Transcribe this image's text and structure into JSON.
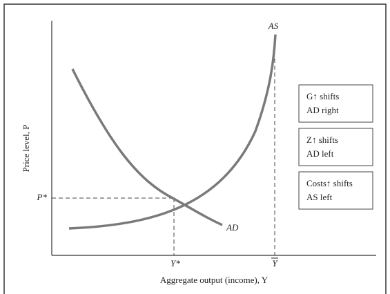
{
  "curves": {
    "as": "AS",
    "ad": "AD"
  },
  "axes": {
    "x_label": "Aggregate output (income), Y",
    "y_label": "Price level, P"
  },
  "points": {
    "p_star": "P*",
    "y_star": "Y*",
    "y_bar": "Y"
  },
  "boxes": [
    {
      "line1": "G↑ shifts",
      "line2": "AD right"
    },
    {
      "line1": "Z↑ shifts",
      "line2": "AD left"
    },
    {
      "line1": "Costs↑ shifts",
      "line2": "AS left"
    }
  ]
}
